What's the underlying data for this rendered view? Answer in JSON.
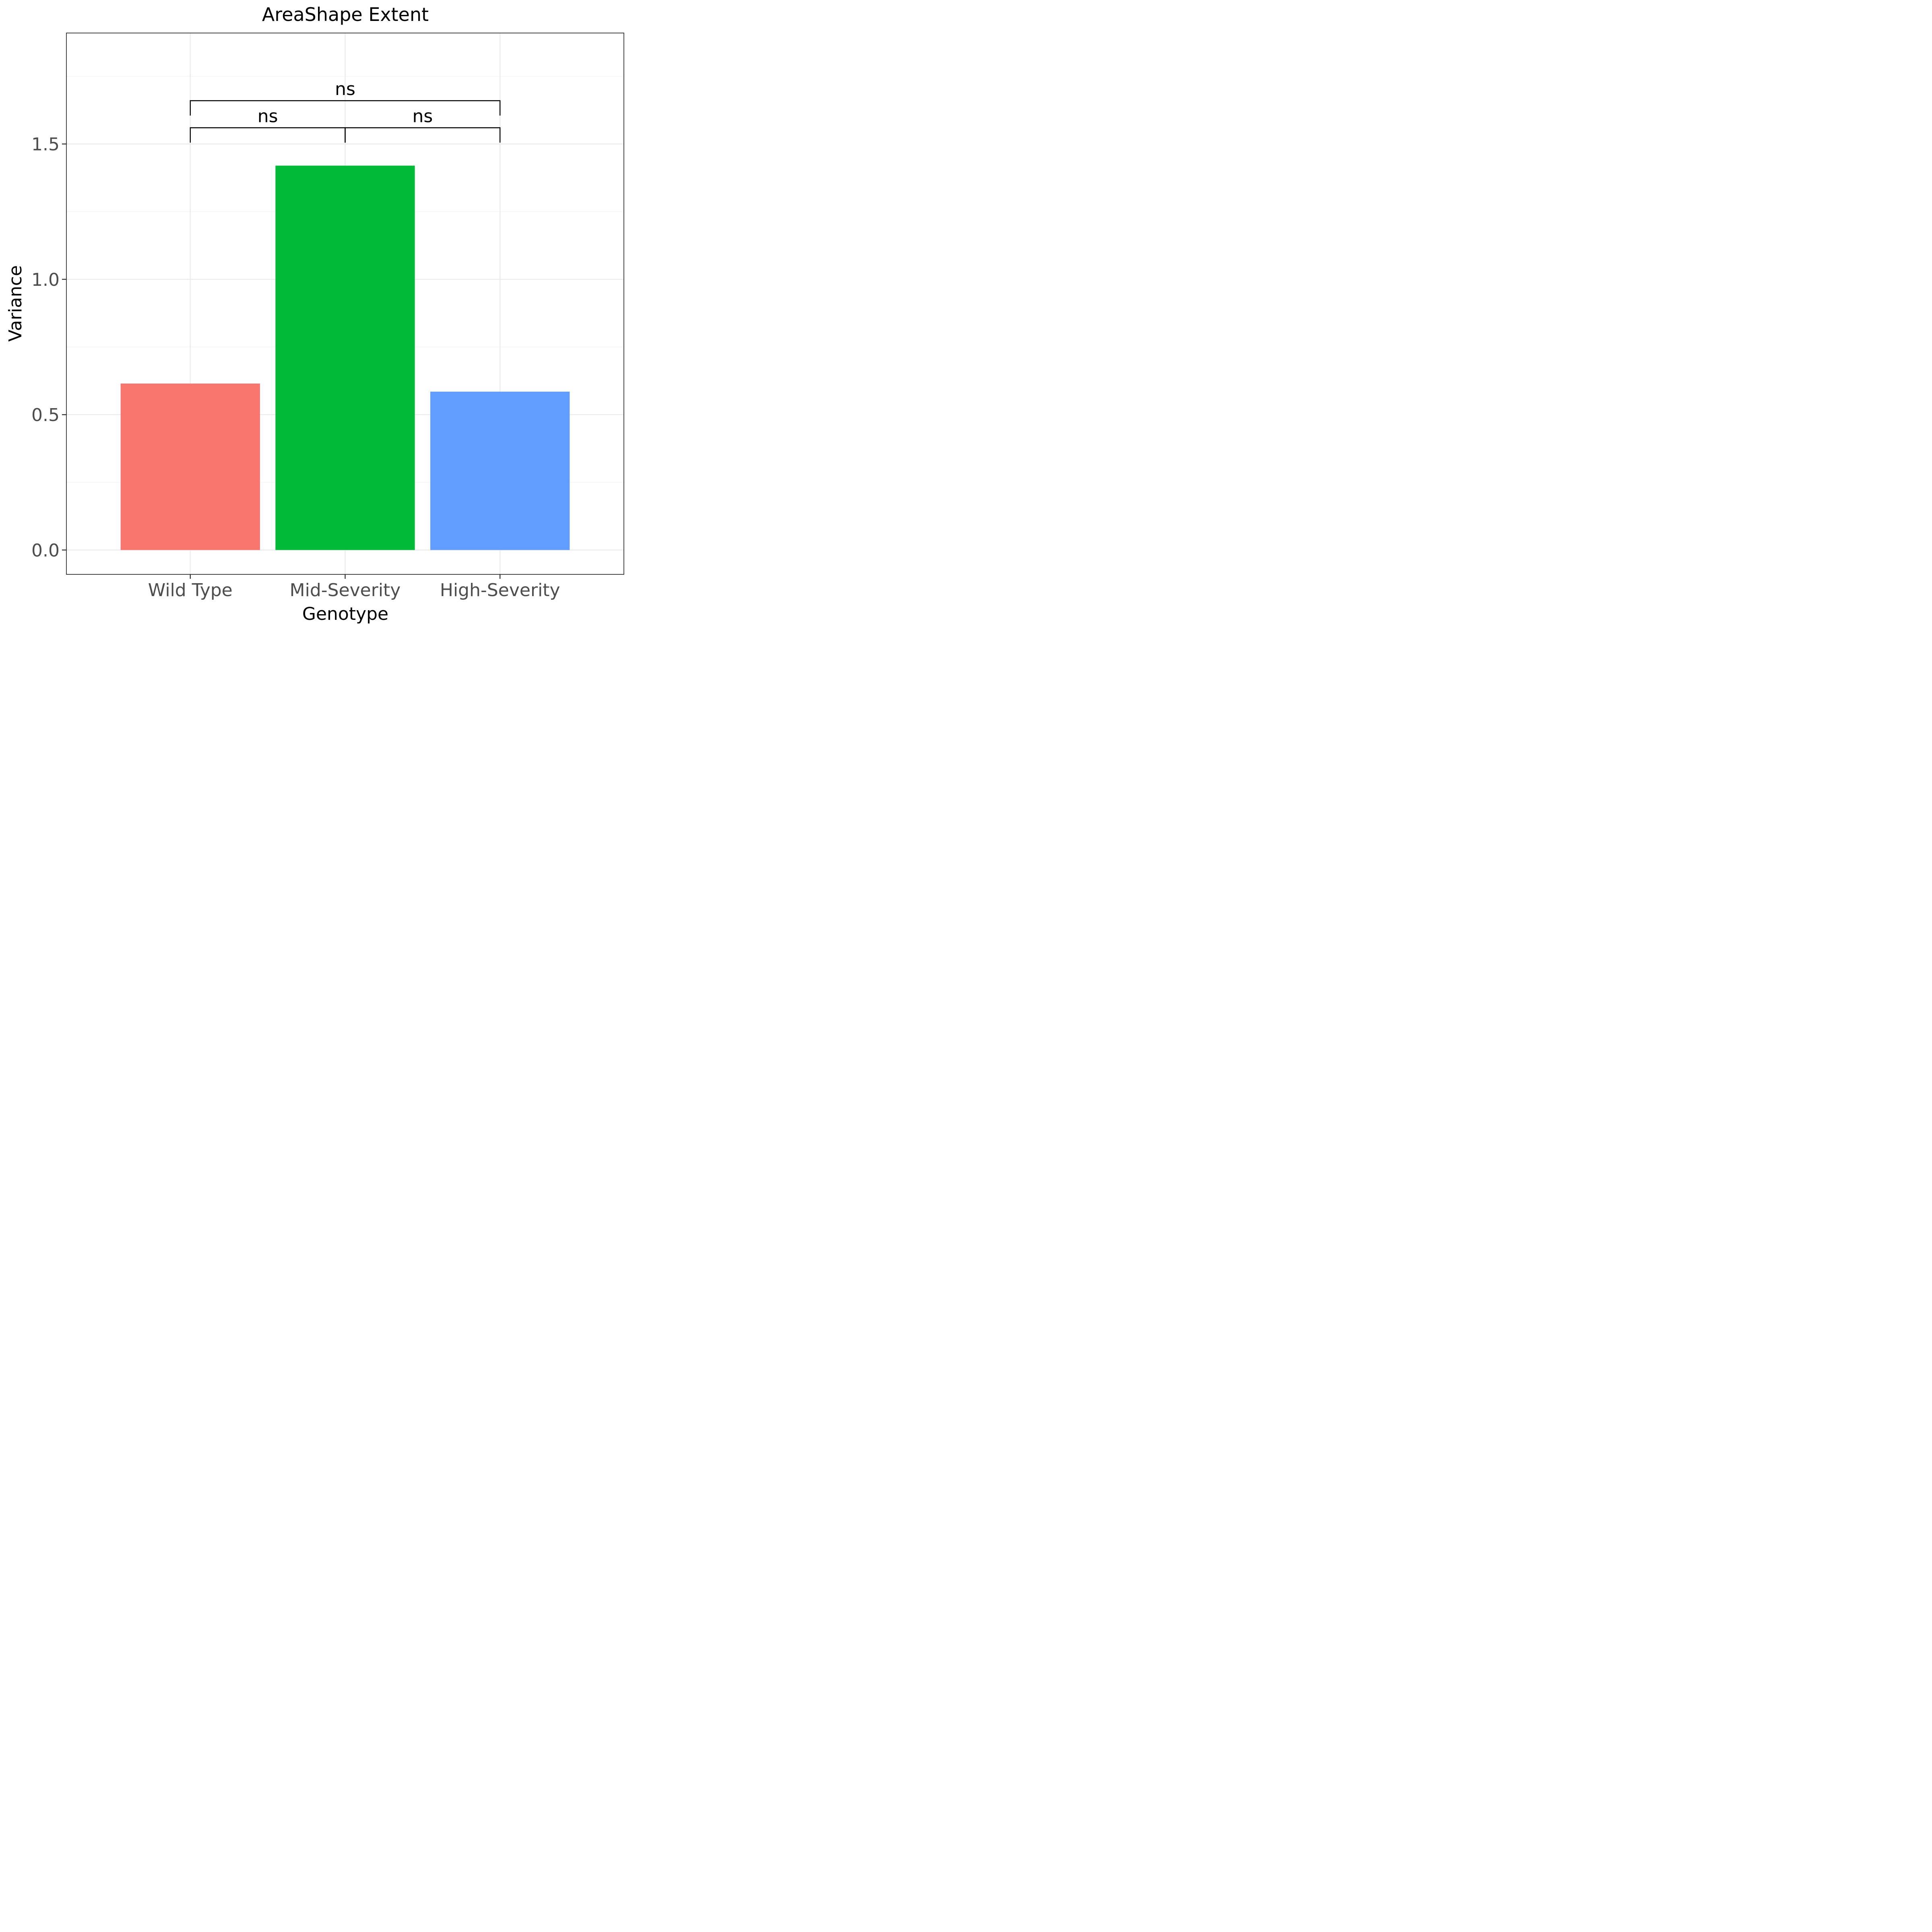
{
  "chart_data": {
    "type": "bar",
    "title": "AreaShape Extent",
    "xlabel": "Genotype",
    "ylabel": "Variance",
    "categories": [
      "Wild Type",
      "Mid-Severity",
      "High-Severity"
    ],
    "values": [
      0.615,
      1.42,
      0.585
    ],
    "colors": [
      "#F8766D",
      "#00BA38",
      "#619CFF"
    ],
    "ylim": [
      -0.09,
      1.91
    ],
    "yticks": [
      0.0,
      0.5,
      1.0,
      1.5
    ],
    "ytick_labels": [
      "0.0",
      "0.5",
      "1.0",
      "1.5"
    ],
    "grid": true,
    "legend": "none",
    "annotations": [
      {
        "from": "Wild Type",
        "to": "Mid-Severity",
        "y": 1.56,
        "label": "ns"
      },
      {
        "from": "Mid-Severity",
        "to": "High-Severity",
        "y": 1.56,
        "label": "ns"
      },
      {
        "from": "Wild Type",
        "to": "High-Severity",
        "y": 1.66,
        "label": "ns"
      }
    ]
  }
}
